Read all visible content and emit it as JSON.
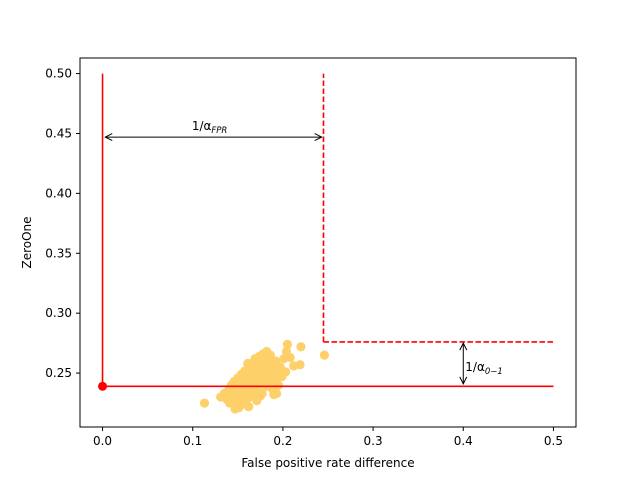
{
  "chart_data": {
    "type": "scatter",
    "xlabel": "False positive rate difference",
    "ylabel": "ZeroOne",
    "xlim": [
      -0.025,
      0.525
    ],
    "ylim": [
      0.205,
      0.513
    ],
    "x_ticks": [
      0.0,
      0.1,
      0.2,
      0.3,
      0.4,
      0.5
    ],
    "x_tick_labels": [
      "0.0",
      "0.1",
      "0.2",
      "0.3",
      "0.4",
      "0.5"
    ],
    "y_ticks": [
      0.25,
      0.3,
      0.35,
      0.4,
      0.45,
      0.5
    ],
    "y_tick_labels": [
      "0.25",
      "0.30",
      "0.35",
      "0.40",
      "0.45",
      "0.50"
    ],
    "grid": false,
    "colors": {
      "scatter": "#fdd06a",
      "reference": "#ff0000",
      "axes": "#000000",
      "background": "#ffffff"
    },
    "scatter_points": {
      "x": [
        0.113,
        0.131,
        0.135,
        0.138,
        0.14,
        0.141,
        0.143,
        0.144,
        0.145,
        0.146,
        0.147,
        0.148,
        0.149,
        0.15,
        0.151,
        0.152,
        0.153,
        0.154,
        0.155,
        0.156,
        0.157,
        0.158,
        0.159,
        0.16,
        0.161,
        0.162,
        0.163,
        0.164,
        0.165,
        0.166,
        0.167,
        0.168,
        0.169,
        0.17,
        0.171,
        0.172,
        0.173,
        0.174,
        0.175,
        0.176,
        0.177,
        0.178,
        0.179,
        0.18,
        0.181,
        0.182,
        0.183,
        0.184,
        0.185,
        0.186,
        0.187,
        0.188,
        0.189,
        0.19,
        0.191,
        0.192,
        0.193,
        0.194,
        0.195,
        0.197,
        0.199,
        0.201,
        0.203,
        0.205,
        0.208,
        0.212,
        0.219,
        0.22,
        0.246,
        0.152,
        0.158,
        0.163,
        0.168,
        0.172,
        0.176,
        0.18,
        0.184,
        0.147,
        0.155,
        0.16,
        0.166,
        0.17,
        0.174,
        0.178,
        0.183,
        0.187,
        0.15,
        0.157,
        0.162,
        0.171,
        0.177,
        0.182,
        0.19,
        0.196,
        0.204,
        0.161,
        0.169,
        0.175,
        0.186,
        0.145,
        0.153
      ],
      "y": [
        0.225,
        0.23,
        0.233,
        0.228,
        0.236,
        0.225,
        0.24,
        0.229,
        0.232,
        0.243,
        0.226,
        0.238,
        0.231,
        0.246,
        0.221,
        0.241,
        0.234,
        0.249,
        0.226,
        0.244,
        0.237,
        0.252,
        0.229,
        0.247,
        0.24,
        0.255,
        0.233,
        0.25,
        0.243,
        0.258,
        0.236,
        0.253,
        0.246,
        0.261,
        0.239,
        0.256,
        0.249,
        0.264,
        0.242,
        0.259,
        0.252,
        0.266,
        0.245,
        0.262,
        0.255,
        0.268,
        0.248,
        0.26,
        0.25,
        0.265,
        0.243,
        0.257,
        0.236,
        0.252,
        0.245,
        0.26,
        0.233,
        0.25,
        0.24,
        0.255,
        0.247,
        0.262,
        0.251,
        0.274,
        0.263,
        0.256,
        0.257,
        0.272,
        0.265,
        0.232,
        0.238,
        0.244,
        0.23,
        0.235,
        0.241,
        0.247,
        0.253,
        0.22,
        0.224,
        0.228,
        0.233,
        0.239,
        0.245,
        0.251,
        0.257,
        0.249,
        0.235,
        0.229,
        0.222,
        0.227,
        0.233,
        0.239,
        0.232,
        0.248,
        0.268,
        0.258,
        0.262,
        0.231,
        0.244,
        0.228,
        0.247
      ]
    },
    "reference_point": {
      "x": 0.0,
      "y": 0.239
    },
    "solid_lines": [
      {
        "x": [
          0.0,
          0.0
        ],
        "y": [
          0.239,
          0.5
        ]
      },
      {
        "x": [
          0.0,
          0.5
        ],
        "y": [
          0.239,
          0.239
        ]
      }
    ],
    "dashed_lines": [
      {
        "x": [
          0.245,
          0.245
        ],
        "y": [
          0.276,
          0.5
        ]
      },
      {
        "x": [
          0.245,
          0.5
        ],
        "y": [
          0.276,
          0.276
        ]
      }
    ],
    "annotations": [
      {
        "label": "1/α",
        "subscript": "FPR",
        "arrow": {
          "x": [
            0.003,
            0.243
          ],
          "y": [
            0.447,
            0.447
          ]
        },
        "text_anchor_data": {
          "x": 0.099,
          "y": 0.453
        }
      },
      {
        "label": "1/α",
        "subscript": "0−1",
        "arrow": {
          "x": [
            0.4,
            0.4
          ],
          "y": [
            0.275,
            0.241
          ]
        },
        "text_anchor_data": {
          "x": 0.4,
          "y": 0.255
        }
      }
    ]
  }
}
